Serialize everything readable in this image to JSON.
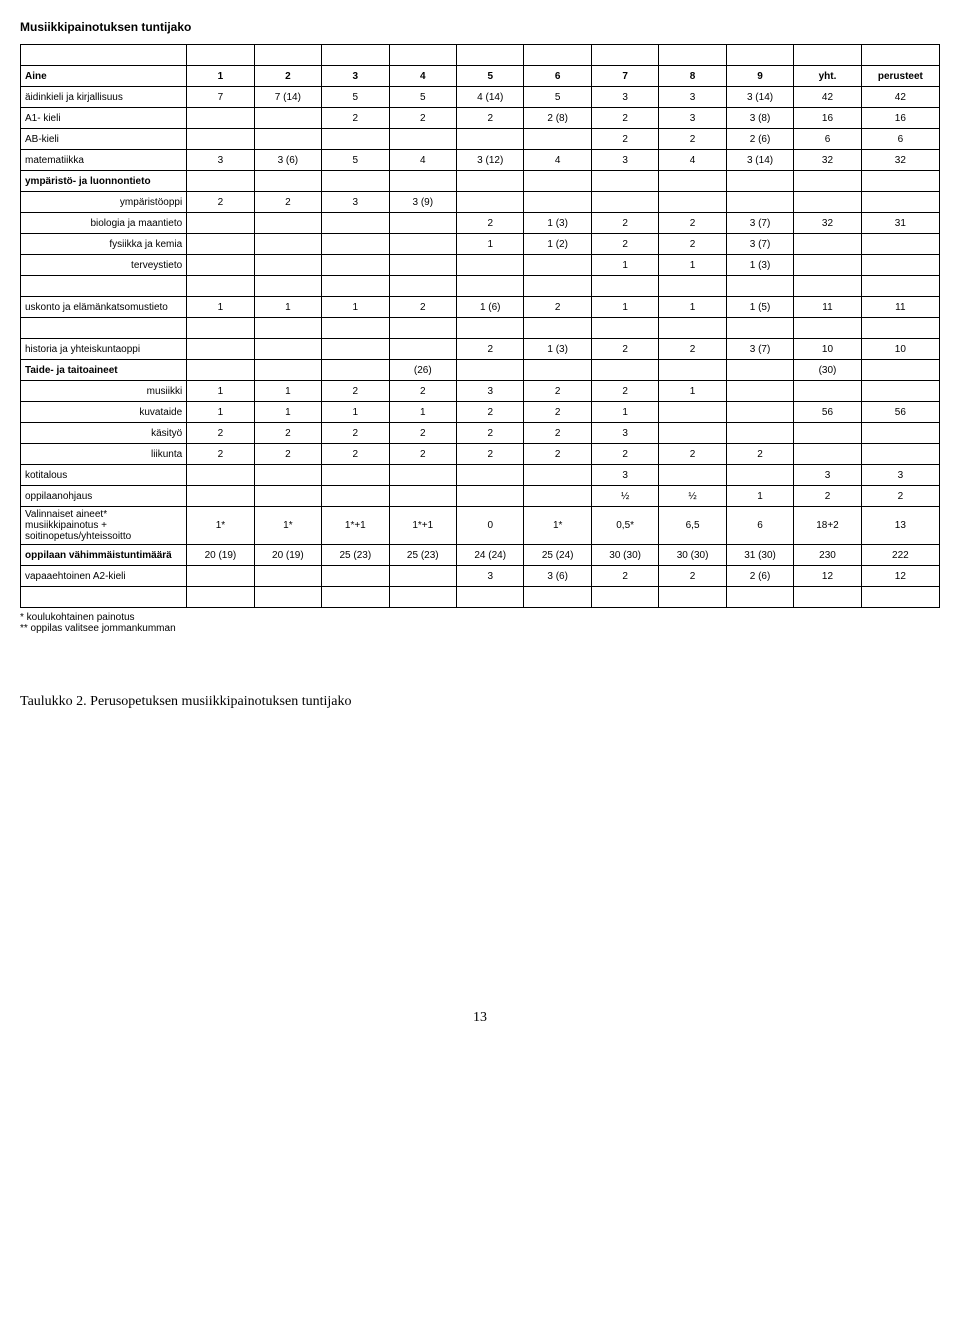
{
  "title": "Musiikkipainotuksen tuntijako",
  "header": {
    "label": "Aine",
    "cols": [
      "1",
      "2",
      "3",
      "4",
      "5",
      "6",
      "7",
      "8",
      "9",
      "yht.",
      "perusteet"
    ]
  },
  "rows": [
    {
      "label": "äidinkieli ja kirjallisuus",
      "c": [
        "7",
        "7 (14)",
        "5",
        "5",
        "4 (14)",
        "5",
        "3",
        "3",
        "3 (14)",
        "42",
        "42"
      ]
    },
    {
      "label": "A1- kieli",
      "c": [
        "",
        "",
        "2",
        "2",
        "2",
        "2 (8)",
        "2",
        "3",
        "3 (8)",
        "16",
        "16"
      ]
    },
    {
      "label": "AB-kieli",
      "c": [
        "",
        "",
        "",
        "",
        "",
        "",
        "2",
        "2",
        "2 (6)",
        "6",
        "6"
      ]
    },
    {
      "label": "matematiikka",
      "c": [
        "3",
        "3 (6)",
        "5",
        "4",
        "3 (12)",
        "4",
        "3",
        "4",
        "3 (14)",
        "32",
        "32"
      ]
    },
    {
      "label": "ympäristö- ja luonnontieto",
      "bold": true,
      "c": [
        "",
        "",
        "",
        "",
        "",
        "",
        "",
        "",
        "",
        "",
        ""
      ]
    },
    {
      "label": "ympäristöoppi",
      "indent": true,
      "c": [
        "2",
        "2",
        "3",
        "3 (9)",
        "",
        "",
        "",
        "",
        "",
        "",
        ""
      ]
    },
    {
      "label": "biologia ja maantieto",
      "indent": true,
      "c": [
        "",
        "",
        "",
        "",
        "2",
        "1 (3)",
        "2",
        "2",
        "3 (7)",
        "32",
        "31"
      ]
    },
    {
      "label": "fysiikka ja kemia",
      "indent": true,
      "c": [
        "",
        "",
        "",
        "",
        "1",
        "1 (2)",
        "2",
        "2",
        "3 (7)",
        "",
        ""
      ]
    },
    {
      "label": "terveystieto",
      "indent": true,
      "c": [
        "",
        "",
        "",
        "",
        "",
        "",
        "1",
        "1",
        "1 (3)",
        "",
        ""
      ]
    }
  ],
  "rows2": [
    {
      "label": "uskonto ja elämänkatsomustieto",
      "c": [
        "1",
        "1",
        "1",
        "2",
        "1 (6)",
        "2",
        "1",
        "1",
        "1 (5)",
        "11",
        "11"
      ]
    }
  ],
  "rows3": [
    {
      "label": "historia ja yhteiskuntaoppi",
      "c": [
        "",
        "",
        "",
        "",
        "2",
        "1 (3)",
        "2",
        "2",
        "3 (7)",
        "10",
        "10"
      ]
    },
    {
      "label": "Taide- ja taitoaineet",
      "bold": true,
      "c": [
        "",
        "",
        "",
        "(26)",
        "",
        "",
        "",
        "",
        "",
        "(30)",
        ""
      ]
    },
    {
      "label": "musiikki",
      "indent": true,
      "c": [
        "1",
        "1",
        "2",
        "2",
        "3",
        "2",
        "2",
        "1",
        "",
        "",
        ""
      ]
    },
    {
      "label": "kuvataide",
      "indent": true,
      "c": [
        "1",
        "1",
        "1",
        "1",
        "2",
        "2",
        "1",
        "",
        "",
        "56",
        "56"
      ]
    },
    {
      "label": "käsityö",
      "indent": true,
      "c": [
        "2",
        "2",
        "2",
        "2",
        "2",
        "2",
        "3",
        "",
        "",
        "",
        ""
      ]
    },
    {
      "label": "liikunta",
      "indent": true,
      "c": [
        "2",
        "2",
        "2",
        "2",
        "2",
        "2",
        "2",
        "2",
        "2",
        "",
        ""
      ]
    },
    {
      "label": "kotitalous",
      "c": [
        "",
        "",
        "",
        "",
        "",
        "",
        "3",
        "",
        "",
        "3",
        "3"
      ]
    },
    {
      "label": "oppilaanohjaus",
      "c": [
        "",
        "",
        "",
        "",
        "",
        "",
        "½",
        "½",
        "1",
        "2",
        "2"
      ]
    },
    {
      "label": "Valinnaiset aineet* musiikkipainotus + soitinopetus/yhteissoitto",
      "c": [
        "1*",
        "1*",
        "1*+1",
        "1*+1",
        "0",
        "1*",
        "0,5*",
        "6,5",
        "6",
        "18+2",
        "13"
      ]
    },
    {
      "label": "oppilaan vähimmäistuntimäärä",
      "bold": true,
      "c": [
        "20 (19)",
        "20 (19)",
        "25 (23)",
        "25 (23)",
        "24 (24)",
        "25 (24)",
        "30 (30)",
        "30 (30)",
        "31 (30)",
        "230",
        "222"
      ]
    },
    {
      "label": "vapaaehtoinen A2-kieli",
      "c": [
        "",
        "",
        "",
        "",
        "3",
        "3 (6)",
        "2",
        "2",
        "2 (6)",
        "12",
        "12"
      ]
    }
  ],
  "notes": [
    "* koulukohtainen painotus",
    "** oppilas valitsee jommankumman"
  ],
  "caption": "Taulukko 2. Perusopetuksen musiikkipainotuksen tuntijako",
  "pagenum": "13"
}
